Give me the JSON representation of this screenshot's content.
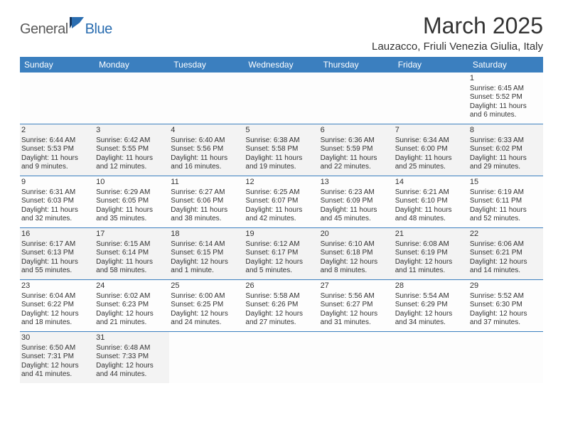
{
  "logo": {
    "text1": "General",
    "text2": "Blue"
  },
  "title": "March 2025",
  "location": "Lauzacco, Friuli Venezia Giulia, Italy",
  "colors": {
    "header_bg": "#3b7fbf",
    "header_text": "#ffffff",
    "row_border": "#3b7fbf",
    "shaded_bg": "#f3f3f3",
    "text": "#333333",
    "logo_gray": "#5a5a5a",
    "logo_blue": "#2a6db0"
  },
  "weekdays": [
    "Sunday",
    "Monday",
    "Tuesday",
    "Wednesday",
    "Thursday",
    "Friday",
    "Saturday"
  ],
  "weeks": [
    [
      {
        "n": "",
        "sr": "",
        "ss": "",
        "dl1": "",
        "dl2": "",
        "shaded": false
      },
      {
        "n": "",
        "sr": "",
        "ss": "",
        "dl1": "",
        "dl2": "",
        "shaded": false
      },
      {
        "n": "",
        "sr": "",
        "ss": "",
        "dl1": "",
        "dl2": "",
        "shaded": false
      },
      {
        "n": "",
        "sr": "",
        "ss": "",
        "dl1": "",
        "dl2": "",
        "shaded": false
      },
      {
        "n": "",
        "sr": "",
        "ss": "",
        "dl1": "",
        "dl2": "",
        "shaded": false
      },
      {
        "n": "",
        "sr": "",
        "ss": "",
        "dl1": "",
        "dl2": "",
        "shaded": false
      },
      {
        "n": "1",
        "sr": "Sunrise: 6:45 AM",
        "ss": "Sunset: 5:52 PM",
        "dl1": "Daylight: 11 hours",
        "dl2": "and 6 minutes.",
        "shaded": false
      }
    ],
    [
      {
        "n": "2",
        "sr": "Sunrise: 6:44 AM",
        "ss": "Sunset: 5:53 PM",
        "dl1": "Daylight: 11 hours",
        "dl2": "and 9 minutes.",
        "shaded": true
      },
      {
        "n": "3",
        "sr": "Sunrise: 6:42 AM",
        "ss": "Sunset: 5:55 PM",
        "dl1": "Daylight: 11 hours",
        "dl2": "and 12 minutes.",
        "shaded": true
      },
      {
        "n": "4",
        "sr": "Sunrise: 6:40 AM",
        "ss": "Sunset: 5:56 PM",
        "dl1": "Daylight: 11 hours",
        "dl2": "and 16 minutes.",
        "shaded": true
      },
      {
        "n": "5",
        "sr": "Sunrise: 6:38 AM",
        "ss": "Sunset: 5:58 PM",
        "dl1": "Daylight: 11 hours",
        "dl2": "and 19 minutes.",
        "shaded": true
      },
      {
        "n": "6",
        "sr": "Sunrise: 6:36 AM",
        "ss": "Sunset: 5:59 PM",
        "dl1": "Daylight: 11 hours",
        "dl2": "and 22 minutes.",
        "shaded": true
      },
      {
        "n": "7",
        "sr": "Sunrise: 6:34 AM",
        "ss": "Sunset: 6:00 PM",
        "dl1": "Daylight: 11 hours",
        "dl2": "and 25 minutes.",
        "shaded": true
      },
      {
        "n": "8",
        "sr": "Sunrise: 6:33 AM",
        "ss": "Sunset: 6:02 PM",
        "dl1": "Daylight: 11 hours",
        "dl2": "and 29 minutes.",
        "shaded": true
      }
    ],
    [
      {
        "n": "9",
        "sr": "Sunrise: 6:31 AM",
        "ss": "Sunset: 6:03 PM",
        "dl1": "Daylight: 11 hours",
        "dl2": "and 32 minutes.",
        "shaded": false
      },
      {
        "n": "10",
        "sr": "Sunrise: 6:29 AM",
        "ss": "Sunset: 6:05 PM",
        "dl1": "Daylight: 11 hours",
        "dl2": "and 35 minutes.",
        "shaded": false
      },
      {
        "n": "11",
        "sr": "Sunrise: 6:27 AM",
        "ss": "Sunset: 6:06 PM",
        "dl1": "Daylight: 11 hours",
        "dl2": "and 38 minutes.",
        "shaded": false
      },
      {
        "n": "12",
        "sr": "Sunrise: 6:25 AM",
        "ss": "Sunset: 6:07 PM",
        "dl1": "Daylight: 11 hours",
        "dl2": "and 42 minutes.",
        "shaded": false
      },
      {
        "n": "13",
        "sr": "Sunrise: 6:23 AM",
        "ss": "Sunset: 6:09 PM",
        "dl1": "Daylight: 11 hours",
        "dl2": "and 45 minutes.",
        "shaded": false
      },
      {
        "n": "14",
        "sr": "Sunrise: 6:21 AM",
        "ss": "Sunset: 6:10 PM",
        "dl1": "Daylight: 11 hours",
        "dl2": "and 48 minutes.",
        "shaded": false
      },
      {
        "n": "15",
        "sr": "Sunrise: 6:19 AM",
        "ss": "Sunset: 6:11 PM",
        "dl1": "Daylight: 11 hours",
        "dl2": "and 52 minutes.",
        "shaded": false
      }
    ],
    [
      {
        "n": "16",
        "sr": "Sunrise: 6:17 AM",
        "ss": "Sunset: 6:13 PM",
        "dl1": "Daylight: 11 hours",
        "dl2": "and 55 minutes.",
        "shaded": true
      },
      {
        "n": "17",
        "sr": "Sunrise: 6:15 AM",
        "ss": "Sunset: 6:14 PM",
        "dl1": "Daylight: 11 hours",
        "dl2": "and 58 minutes.",
        "shaded": true
      },
      {
        "n": "18",
        "sr": "Sunrise: 6:14 AM",
        "ss": "Sunset: 6:15 PM",
        "dl1": "Daylight: 12 hours",
        "dl2": "and 1 minute.",
        "shaded": true
      },
      {
        "n": "19",
        "sr": "Sunrise: 6:12 AM",
        "ss": "Sunset: 6:17 PM",
        "dl1": "Daylight: 12 hours",
        "dl2": "and 5 minutes.",
        "shaded": true
      },
      {
        "n": "20",
        "sr": "Sunrise: 6:10 AM",
        "ss": "Sunset: 6:18 PM",
        "dl1": "Daylight: 12 hours",
        "dl2": "and 8 minutes.",
        "shaded": true
      },
      {
        "n": "21",
        "sr": "Sunrise: 6:08 AM",
        "ss": "Sunset: 6:19 PM",
        "dl1": "Daylight: 12 hours",
        "dl2": "and 11 minutes.",
        "shaded": true
      },
      {
        "n": "22",
        "sr": "Sunrise: 6:06 AM",
        "ss": "Sunset: 6:21 PM",
        "dl1": "Daylight: 12 hours",
        "dl2": "and 14 minutes.",
        "shaded": true
      }
    ],
    [
      {
        "n": "23",
        "sr": "Sunrise: 6:04 AM",
        "ss": "Sunset: 6:22 PM",
        "dl1": "Daylight: 12 hours",
        "dl2": "and 18 minutes.",
        "shaded": false
      },
      {
        "n": "24",
        "sr": "Sunrise: 6:02 AM",
        "ss": "Sunset: 6:23 PM",
        "dl1": "Daylight: 12 hours",
        "dl2": "and 21 minutes.",
        "shaded": false
      },
      {
        "n": "25",
        "sr": "Sunrise: 6:00 AM",
        "ss": "Sunset: 6:25 PM",
        "dl1": "Daylight: 12 hours",
        "dl2": "and 24 minutes.",
        "shaded": false
      },
      {
        "n": "26",
        "sr": "Sunrise: 5:58 AM",
        "ss": "Sunset: 6:26 PM",
        "dl1": "Daylight: 12 hours",
        "dl2": "and 27 minutes.",
        "shaded": false
      },
      {
        "n": "27",
        "sr": "Sunrise: 5:56 AM",
        "ss": "Sunset: 6:27 PM",
        "dl1": "Daylight: 12 hours",
        "dl2": "and 31 minutes.",
        "shaded": false
      },
      {
        "n": "28",
        "sr": "Sunrise: 5:54 AM",
        "ss": "Sunset: 6:29 PM",
        "dl1": "Daylight: 12 hours",
        "dl2": "and 34 minutes.",
        "shaded": false
      },
      {
        "n": "29",
        "sr": "Sunrise: 5:52 AM",
        "ss": "Sunset: 6:30 PM",
        "dl1": "Daylight: 12 hours",
        "dl2": "and 37 minutes.",
        "shaded": false
      }
    ],
    [
      {
        "n": "30",
        "sr": "Sunrise: 6:50 AM",
        "ss": "Sunset: 7:31 PM",
        "dl1": "Daylight: 12 hours",
        "dl2": "and 41 minutes.",
        "shaded": true
      },
      {
        "n": "31",
        "sr": "Sunrise: 6:48 AM",
        "ss": "Sunset: 7:33 PM",
        "dl1": "Daylight: 12 hours",
        "dl2": "and 44 minutes.",
        "shaded": true
      },
      {
        "n": "",
        "sr": "",
        "ss": "",
        "dl1": "",
        "dl2": "",
        "shaded": false
      },
      {
        "n": "",
        "sr": "",
        "ss": "",
        "dl1": "",
        "dl2": "",
        "shaded": false
      },
      {
        "n": "",
        "sr": "",
        "ss": "",
        "dl1": "",
        "dl2": "",
        "shaded": false
      },
      {
        "n": "",
        "sr": "",
        "ss": "",
        "dl1": "",
        "dl2": "",
        "shaded": false
      },
      {
        "n": "",
        "sr": "",
        "ss": "",
        "dl1": "",
        "dl2": "",
        "shaded": false
      }
    ]
  ]
}
